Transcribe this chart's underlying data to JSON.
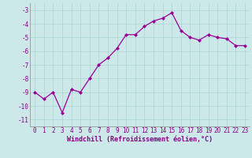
{
  "x": [
    0,
    1,
    2,
    3,
    4,
    5,
    6,
    7,
    8,
    9,
    10,
    11,
    12,
    13,
    14,
    15,
    16,
    17,
    18,
    19,
    20,
    21,
    22,
    23
  ],
  "y": [
    -9.0,
    -9.5,
    -9.0,
    -10.5,
    -8.8,
    -9.0,
    -8.0,
    -7.0,
    -6.5,
    -5.8,
    -4.8,
    -4.8,
    -4.2,
    -3.8,
    -3.6,
    -3.2,
    -4.5,
    -5.0,
    -5.2,
    -4.8,
    -5.0,
    -5.1,
    -5.6,
    -5.6
  ],
  "color": "#990099",
  "bg_color": "#cce8e8",
  "grid_color": "#aad4d4",
  "xlabel": "Windchill (Refroidissement éolien,°C)",
  "ylim": [
    -11.5,
    -2.5
  ],
  "xlim": [
    -0.5,
    23.5
  ],
  "yticks": [
    -3,
    -4,
    -5,
    -6,
    -7,
    -8,
    -9,
    -10,
    -11
  ],
  "xticks": [
    0,
    1,
    2,
    3,
    4,
    5,
    6,
    7,
    8,
    9,
    10,
    11,
    12,
    13,
    14,
    15,
    16,
    17,
    18,
    19,
    20,
    21,
    22,
    23
  ],
  "marker": "D",
  "markersize": 2.0,
  "linewidth": 0.9,
  "xlabel_fontsize": 6.0,
  "tick_fontsize": 5.5,
  "label_color": "#880088"
}
